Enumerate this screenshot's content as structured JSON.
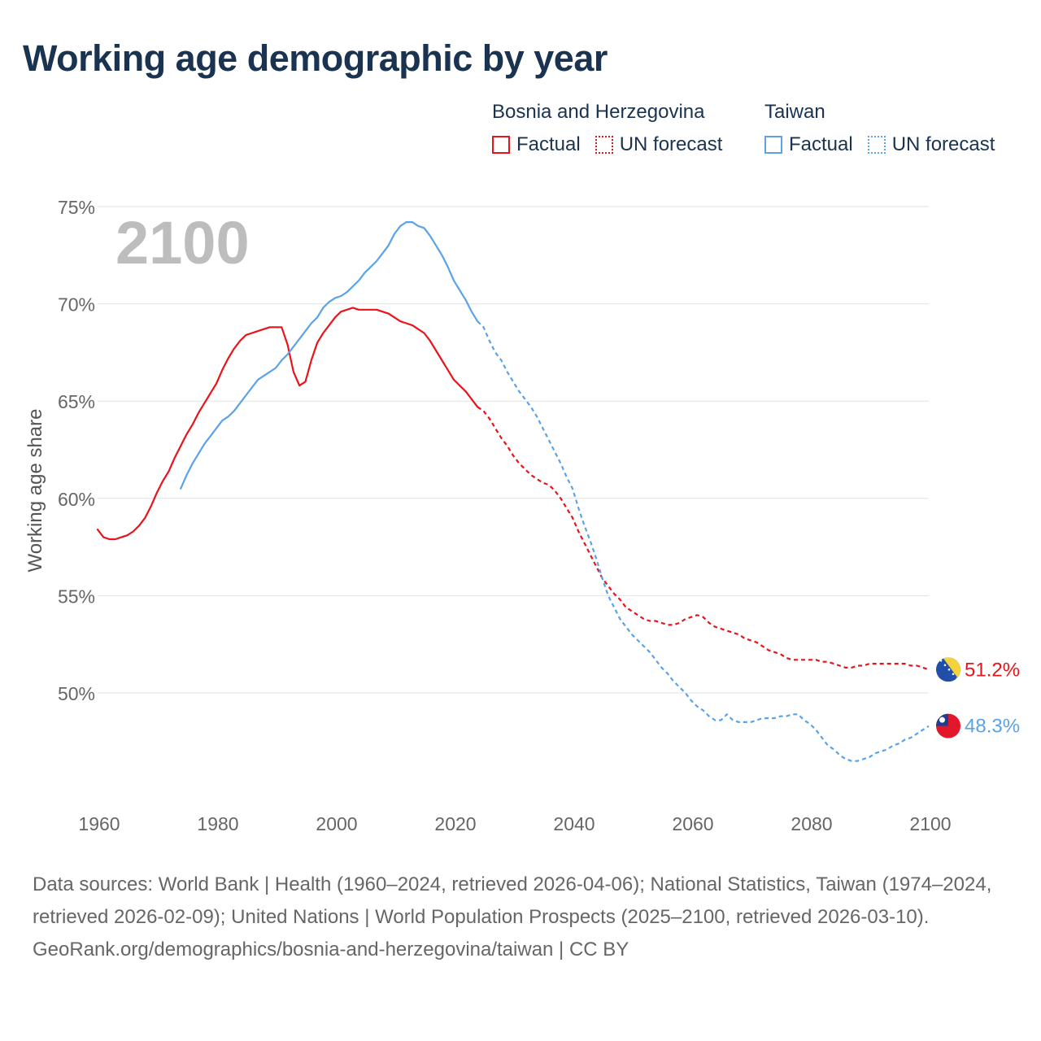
{
  "title": "Working age demographic by year",
  "year_label": "2100",
  "legend": {
    "groups": [
      {
        "name": "Bosnia and Herzegovina",
        "color": "#e8141b",
        "factual_label": "Factual",
        "forecast_label": "UN forecast"
      },
      {
        "name": "Taiwan",
        "color": "#5ba3e6",
        "factual_label": "Factual",
        "forecast_label": "UN forecast"
      }
    ]
  },
  "footer": {
    "sources": "Data sources: World Bank | Health (1960–2024, retrieved 2026-04-06); National Statistics, Taiwan (1974–2024, retrieved 2026-02-09); United Nations | World Population Prospects (2025–2100, retrieved 2026-03-10).",
    "credit": "GeoRank.org/demographics/bosnia-and-herzegovina/taiwan | CC BY"
  },
  "chart_data": {
    "type": "line",
    "title": "Working age demographic by year",
    "xlabel": "",
    "ylabel": "Working age share",
    "xlim": [
      1960,
      2100
    ],
    "ylim": [
      44.5,
      75
    ],
    "grid": true,
    "x_ticks": [
      {
        "value": 1960,
        "label": "1960"
      },
      {
        "value": 1980,
        "label": "1980"
      },
      {
        "value": 2000,
        "label": "2000"
      },
      {
        "value": 2020,
        "label": "2020"
      },
      {
        "value": 2040,
        "label": "2040"
      },
      {
        "value": 2060,
        "label": "2060"
      },
      {
        "value": 2080,
        "label": "2080"
      },
      {
        "value": 2100,
        "label": "2100"
      }
    ],
    "y_ticks": [
      {
        "value": 50,
        "label": "50%"
      },
      {
        "value": 55,
        "label": "55%"
      },
      {
        "value": 60,
        "label": "60%"
      },
      {
        "value": 65,
        "label": "65%"
      },
      {
        "value": 70,
        "label": "70%"
      },
      {
        "value": 75,
        "label": "75%"
      }
    ],
    "series": [
      {
        "name": "Bosnia and Herzegovina",
        "color": "#e8141b",
        "end_label": "51.2%",
        "factual": [
          [
            1960,
            58.4
          ],
          [
            1961,
            58.0
          ],
          [
            1962,
            57.9
          ],
          [
            1963,
            57.9
          ],
          [
            1964,
            58.0
          ],
          [
            1965,
            58.1
          ],
          [
            1966,
            58.3
          ],
          [
            1967,
            58.6
          ],
          [
            1968,
            59.0
          ],
          [
            1969,
            59.6
          ],
          [
            1970,
            60.3
          ],
          [
            1971,
            60.9
          ],
          [
            1972,
            61.4
          ],
          [
            1973,
            62.1
          ],
          [
            1974,
            62.7
          ],
          [
            1975,
            63.3
          ],
          [
            1976,
            63.8
          ],
          [
            1977,
            64.4
          ],
          [
            1978,
            64.9
          ],
          [
            1979,
            65.4
          ],
          [
            1980,
            65.9
          ],
          [
            1981,
            66.6
          ],
          [
            1982,
            67.2
          ],
          [
            1983,
            67.7
          ],
          [
            1984,
            68.1
          ],
          [
            1985,
            68.4
          ],
          [
            1986,
            68.5
          ],
          [
            1987,
            68.6
          ],
          [
            1988,
            68.7
          ],
          [
            1989,
            68.8
          ],
          [
            1990,
            68.8
          ],
          [
            1991,
            68.8
          ],
          [
            1992,
            67.9
          ],
          [
            1993,
            66.5
          ],
          [
            1994,
            65.8
          ],
          [
            1995,
            66.0
          ],
          [
            1996,
            67.1
          ],
          [
            1997,
            68.0
          ],
          [
            1998,
            68.5
          ],
          [
            1999,
            68.9
          ],
          [
            2000,
            69.3
          ],
          [
            2001,
            69.6
          ],
          [
            2002,
            69.7
          ],
          [
            2003,
            69.8
          ],
          [
            2004,
            69.7
          ],
          [
            2005,
            69.7
          ],
          [
            2006,
            69.7
          ],
          [
            2007,
            69.7
          ],
          [
            2008,
            69.6
          ],
          [
            2009,
            69.5
          ],
          [
            2010,
            69.3
          ],
          [
            2011,
            69.1
          ],
          [
            2012,
            69.0
          ],
          [
            2013,
            68.9
          ],
          [
            2014,
            68.7
          ],
          [
            2015,
            68.5
          ],
          [
            2016,
            68.1
          ],
          [
            2017,
            67.6
          ],
          [
            2018,
            67.1
          ],
          [
            2019,
            66.6
          ],
          [
            2020,
            66.1
          ],
          [
            2021,
            65.8
          ],
          [
            2022,
            65.5
          ],
          [
            2023,
            65.1
          ],
          [
            2024,
            64.7
          ]
        ],
        "forecast": [
          [
            2024,
            64.7
          ],
          [
            2025,
            64.5
          ],
          [
            2026,
            64.1
          ],
          [
            2027,
            63.6
          ],
          [
            2028,
            63.1
          ],
          [
            2029,
            62.7
          ],
          [
            2030,
            62.2
          ],
          [
            2031,
            61.8
          ],
          [
            2032,
            61.5
          ],
          [
            2033,
            61.2
          ],
          [
            2034,
            61.0
          ],
          [
            2035,
            60.8
          ],
          [
            2036,
            60.7
          ],
          [
            2037,
            60.4
          ],
          [
            2038,
            60.0
          ],
          [
            2039,
            59.5
          ],
          [
            2040,
            59.0
          ],
          [
            2041,
            58.3
          ],
          [
            2042,
            57.7
          ],
          [
            2043,
            57.1
          ],
          [
            2044,
            56.5
          ],
          [
            2045,
            55.9
          ],
          [
            2046,
            55.5
          ],
          [
            2047,
            55.1
          ],
          [
            2048,
            54.8
          ],
          [
            2049,
            54.4
          ],
          [
            2050,
            54.2
          ],
          [
            2051,
            54.0
          ],
          [
            2052,
            53.8
          ],
          [
            2053,
            53.7
          ],
          [
            2054,
            53.7
          ],
          [
            2055,
            53.6
          ],
          [
            2056,
            53.5
          ],
          [
            2057,
            53.5
          ],
          [
            2058,
            53.6
          ],
          [
            2059,
            53.8
          ],
          [
            2060,
            53.9
          ],
          [
            2061,
            54.0
          ],
          [
            2062,
            53.9
          ],
          [
            2063,
            53.6
          ],
          [
            2064,
            53.4
          ],
          [
            2065,
            53.3
          ],
          [
            2066,
            53.2
          ],
          [
            2067,
            53.1
          ],
          [
            2068,
            53.0
          ],
          [
            2069,
            52.8
          ],
          [
            2070,
            52.7
          ],
          [
            2071,
            52.6
          ],
          [
            2072,
            52.4
          ],
          [
            2073,
            52.2
          ],
          [
            2074,
            52.1
          ],
          [
            2075,
            52.0
          ],
          [
            2076,
            51.8
          ],
          [
            2077,
            51.7
          ],
          [
            2078,
            51.7
          ],
          [
            2079,
            51.7
          ],
          [
            2080,
            51.7
          ],
          [
            2081,
            51.7
          ],
          [
            2082,
            51.6
          ],
          [
            2083,
            51.6
          ],
          [
            2084,
            51.5
          ],
          [
            2085,
            51.4
          ],
          [
            2086,
            51.3
          ],
          [
            2087,
            51.3
          ],
          [
            2088,
            51.4
          ],
          [
            2089,
            51.4
          ],
          [
            2090,
            51.5
          ],
          [
            2091,
            51.5
          ],
          [
            2092,
            51.5
          ],
          [
            2093,
            51.5
          ],
          [
            2094,
            51.5
          ],
          [
            2095,
            51.5
          ],
          [
            2096,
            51.5
          ],
          [
            2097,
            51.4
          ],
          [
            2098,
            51.4
          ],
          [
            2099,
            51.3
          ],
          [
            2100,
            51.2
          ]
        ]
      },
      {
        "name": "Taiwan",
        "color": "#5ba3e6",
        "end_label": "48.3%",
        "factual": [
          [
            1974,
            60.5
          ],
          [
            1975,
            61.2
          ],
          [
            1976,
            61.8
          ],
          [
            1977,
            62.3
          ],
          [
            1978,
            62.8
          ],
          [
            1979,
            63.2
          ],
          [
            1980,
            63.6
          ],
          [
            1981,
            64.0
          ],
          [
            1982,
            64.2
          ],
          [
            1983,
            64.5
          ],
          [
            1984,
            64.9
          ],
          [
            1985,
            65.3
          ],
          [
            1986,
            65.7
          ],
          [
            1987,
            66.1
          ],
          [
            1988,
            66.3
          ],
          [
            1989,
            66.5
          ],
          [
            1990,
            66.7
          ],
          [
            1991,
            67.1
          ],
          [
            1992,
            67.4
          ],
          [
            1993,
            67.8
          ],
          [
            1994,
            68.2
          ],
          [
            1995,
            68.6
          ],
          [
            1996,
            69.0
          ],
          [
            1997,
            69.3
          ],
          [
            1998,
            69.8
          ],
          [
            1999,
            70.1
          ],
          [
            2000,
            70.3
          ],
          [
            2001,
            70.4
          ],
          [
            2002,
            70.6
          ],
          [
            2003,
            70.9
          ],
          [
            2004,
            71.2
          ],
          [
            2005,
            71.6
          ],
          [
            2006,
            71.9
          ],
          [
            2007,
            72.2
          ],
          [
            2008,
            72.6
          ],
          [
            2009,
            73.0
          ],
          [
            2010,
            73.6
          ],
          [
            2011,
            74.0
          ],
          [
            2012,
            74.2
          ],
          [
            2013,
            74.2
          ],
          [
            2014,
            74.0
          ],
          [
            2015,
            73.9
          ],
          [
            2016,
            73.5
          ],
          [
            2017,
            73.0
          ],
          [
            2018,
            72.5
          ],
          [
            2019,
            71.9
          ],
          [
            2020,
            71.2
          ],
          [
            2021,
            70.7
          ],
          [
            2022,
            70.2
          ],
          [
            2023,
            69.6
          ],
          [
            2024,
            69.1
          ]
        ],
        "forecast": [
          [
            2024,
            69.1
          ],
          [
            2025,
            68.8
          ],
          [
            2026,
            68.1
          ],
          [
            2027,
            67.5
          ],
          [
            2028,
            67.1
          ],
          [
            2029,
            66.5
          ],
          [
            2030,
            66.0
          ],
          [
            2031,
            65.5
          ],
          [
            2032,
            65.1
          ],
          [
            2033,
            64.7
          ],
          [
            2034,
            64.2
          ],
          [
            2035,
            63.6
          ],
          [
            2036,
            63.0
          ],
          [
            2037,
            62.4
          ],
          [
            2038,
            61.8
          ],
          [
            2039,
            61.1
          ],
          [
            2040,
            60.5
          ],
          [
            2041,
            59.5
          ],
          [
            2042,
            58.6
          ],
          [
            2043,
            57.8
          ],
          [
            2044,
            56.9
          ],
          [
            2045,
            55.9
          ],
          [
            2046,
            55.0
          ],
          [
            2047,
            54.4
          ],
          [
            2048,
            53.8
          ],
          [
            2049,
            53.4
          ],
          [
            2050,
            53.0
          ],
          [
            2051,
            52.7
          ],
          [
            2052,
            52.4
          ],
          [
            2053,
            52.1
          ],
          [
            2054,
            51.7
          ],
          [
            2055,
            51.3
          ],
          [
            2056,
            51.0
          ],
          [
            2057,
            50.6
          ],
          [
            2058,
            50.3
          ],
          [
            2059,
            50.0
          ],
          [
            2060,
            49.6
          ],
          [
            2061,
            49.3
          ],
          [
            2062,
            49.1
          ],
          [
            2063,
            48.8
          ],
          [
            2064,
            48.6
          ],
          [
            2065,
            48.6
          ],
          [
            2066,
            48.9
          ],
          [
            2067,
            48.6
          ],
          [
            2068,
            48.5
          ],
          [
            2069,
            48.5
          ],
          [
            2070,
            48.5
          ],
          [
            2071,
            48.6
          ],
          [
            2072,
            48.7
          ],
          [
            2073,
            48.7
          ],
          [
            2074,
            48.7
          ],
          [
            2075,
            48.8
          ],
          [
            2076,
            48.8
          ],
          [
            2077,
            48.9
          ],
          [
            2078,
            48.9
          ],
          [
            2079,
            48.6
          ],
          [
            2080,
            48.4
          ],
          [
            2081,
            48.1
          ],
          [
            2082,
            47.7
          ],
          [
            2083,
            47.3
          ],
          [
            2084,
            47.1
          ],
          [
            2085,
            46.8
          ],
          [
            2086,
            46.6
          ],
          [
            2087,
            46.5
          ],
          [
            2088,
            46.5
          ],
          [
            2089,
            46.6
          ],
          [
            2090,
            46.7
          ],
          [
            2091,
            46.9
          ],
          [
            2092,
            47.0
          ],
          [
            2093,
            47.1
          ],
          [
            2094,
            47.3
          ],
          [
            2095,
            47.4
          ],
          [
            2096,
            47.6
          ],
          [
            2097,
            47.7
          ],
          [
            2098,
            47.9
          ],
          [
            2099,
            48.1
          ],
          [
            2100,
            48.3
          ]
        ]
      }
    ]
  }
}
